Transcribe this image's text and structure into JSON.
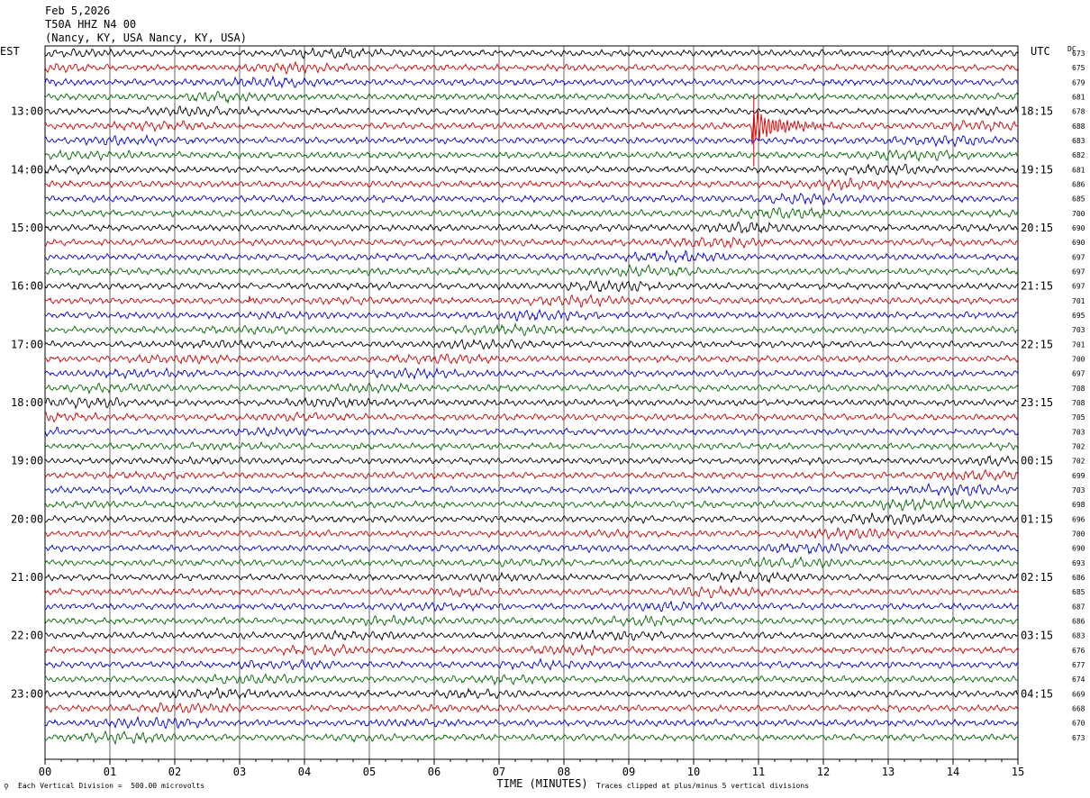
{
  "header": {
    "date": "Feb 5,2026",
    "station": "T50A HHZ N4 00",
    "location": "(Nancy, KY, USA Nancy, KY, USA)"
  },
  "left_tz": "EST",
  "right_tz": "UTC",
  "dc_label": "DC",
  "footer": {
    "scale": "Each Vertical Division =  500.00 microvolts",
    "xlabel": "TIME (MINUTES)",
    "clip": "Traces clipped at plus/minus 5 vertical divisions"
  },
  "colors": {
    "cycle": [
      "#000000",
      "#cc0000",
      "#0000cc",
      "#006600"
    ],
    "grid": "#000000"
  },
  "chart_data": {
    "type": "line",
    "title": "T50A HHZ N4 00",
    "xlabel": "TIME (MINUTES)",
    "xlim": [
      0,
      15
    ],
    "x_ticks": [
      "00",
      "01",
      "02",
      "03",
      "04",
      "05",
      "06",
      "07",
      "08",
      "09",
      "10",
      "11",
      "12",
      "13",
      "14",
      "15"
    ],
    "trace_minutes": 15,
    "trace_count": 48,
    "left_hour_labels": [
      "13:00",
      "14:00",
      "15:00",
      "16:00",
      "17:00",
      "18:00",
      "19:00",
      "20:00",
      "21:00",
      "22:00",
      "23:00"
    ],
    "right_hour_labels": [
      "18:15",
      "19:15",
      "20:15",
      "21:15",
      "22:15",
      "23:15",
      "00:15",
      "01:15",
      "02:15",
      "03:15",
      "04:15"
    ],
    "hour_label_first_trace": 4,
    "dc_offsets": [
      673,
      675,
      679,
      681,
      678,
      688,
      683,
      682,
      681,
      686,
      685,
      700,
      690,
      690,
      697,
      697,
      697,
      701,
      695,
      703,
      701,
      700,
      697,
      708,
      708,
      705,
      703,
      702,
      702,
      699,
      703,
      698,
      696,
      700,
      690,
      693,
      686,
      685,
      687,
      686,
      683,
      676,
      677,
      674,
      669,
      668,
      670,
      673
    ],
    "amplitude_units": "microvolts",
    "vertical_division_microvolts": 500.0,
    "events": [
      {
        "trace": 5,
        "start_minute": 10.9,
        "end_minute": 12.6,
        "peak_divisions": 1.0,
        "color": "#cc0000"
      },
      {
        "trace": 17,
        "start_minute": 3.15,
        "end_minute": 3.35,
        "peak_divisions": 0.4,
        "color": "#cc0000"
      }
    ]
  }
}
